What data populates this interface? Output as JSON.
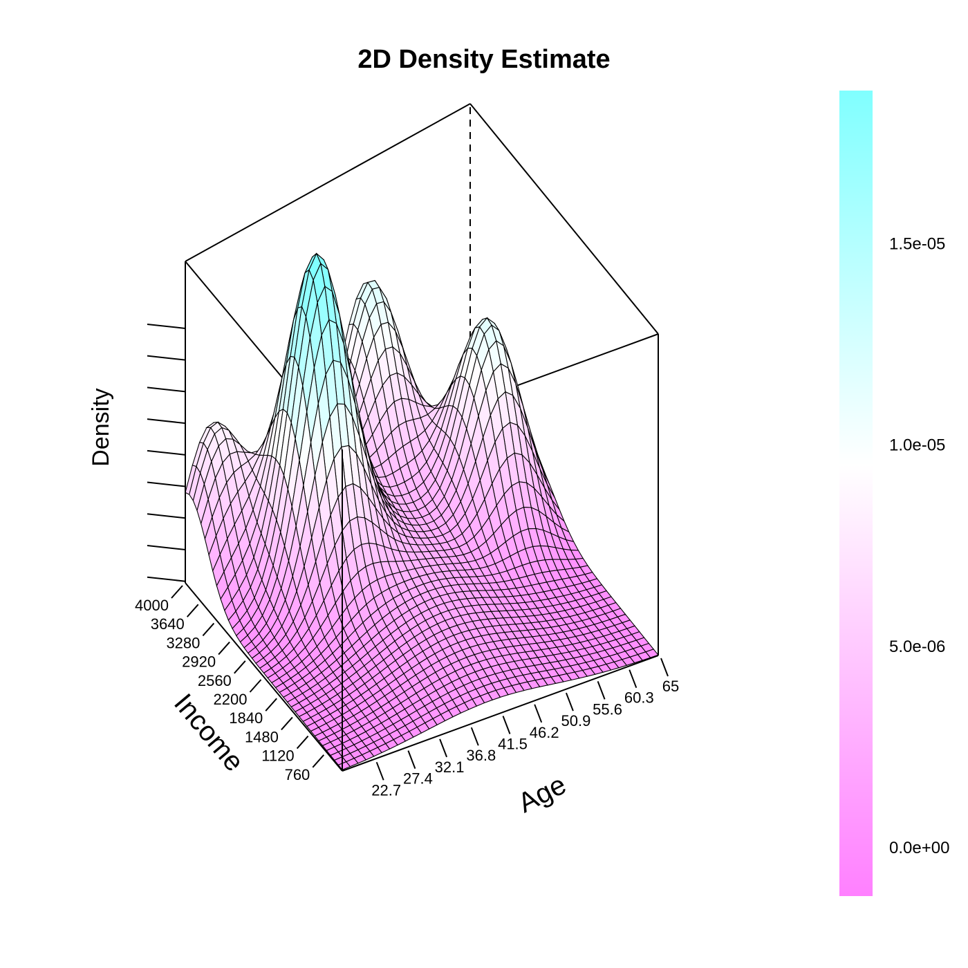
{
  "chart_data": {
    "type": "surface3d",
    "title": "2D Density Estimate",
    "xlabel": "Age",
    "ylabel": "Income",
    "zlabel": "Density",
    "x_ticks": [
      "22.7",
      "27.4",
      "32.1",
      "36.8",
      "41.5",
      "46.2",
      "50.9",
      "55.6",
      "60.3",
      "65"
    ],
    "y_ticks": [
      "760",
      "1120",
      "1480",
      "1840",
      "2200",
      "2560",
      "2920",
      "3280",
      "3640",
      "4000"
    ],
    "xlim": [
      18,
      65
    ],
    "ylim": [
      400,
      4000
    ],
    "zlim": [
      0,
      1.85e-05
    ],
    "z_tick_count": 9,
    "peaks": [
      {
        "age": 32,
        "income": 3000,
        "density": 1.72e-05
      },
      {
        "age": 48,
        "income": 3900,
        "density": 1.05e-05
      },
      {
        "age": 58,
        "income": 2800,
        "density": 1.12e-05
      },
      {
        "age": 22,
        "income": 3900,
        "density": 8.2e-06
      }
    ],
    "colorbar": {
      "ticks": [
        "0.0e+00",
        "5.0e-06",
        "1.0e-05",
        "1.5e-05"
      ],
      "tick_values": [
        0,
        5e-06,
        1e-05,
        1.5e-05
      ],
      "range": [
        -1.2e-06,
        1.88e-05
      ],
      "low_color": "#ff80ff",
      "mid_color": "#ffffff",
      "high_color": "#80ffff",
      "mid_value": 9.5e-06
    },
    "box": true,
    "grid": false
  }
}
